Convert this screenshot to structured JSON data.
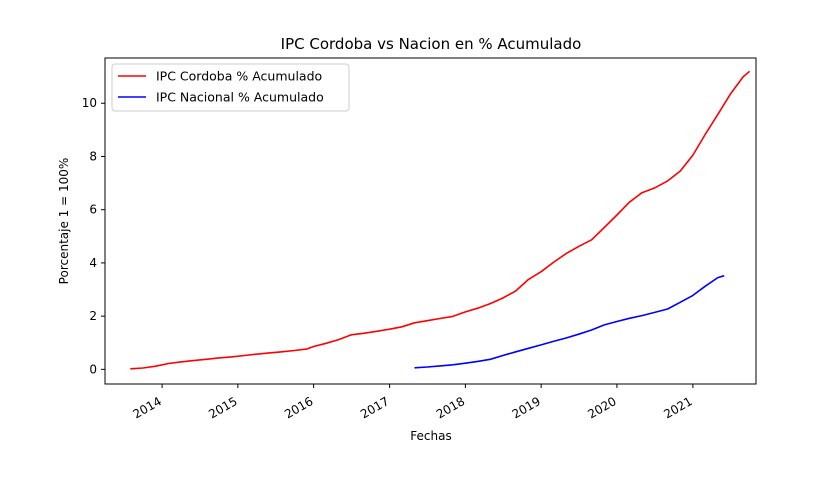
{
  "chart_data": {
    "type": "line",
    "title": "IPC Cordoba vs Nacion en % Acumulado",
    "xlabel": "Fechas",
    "ylabel": "Porcentaje 1 = 100%",
    "xlim": [
      "2013-04-01",
      "2021-11-01"
    ],
    "ylim": [
      -0.55,
      11.7
    ],
    "x_ticks": [
      "2014",
      "2015",
      "2016",
      "2017",
      "2018",
      "2019",
      "2020",
      "2021"
    ],
    "y_ticks": [
      0,
      2,
      4,
      6,
      8,
      10
    ],
    "grid": false,
    "legend_position": "top-left",
    "series": [
      {
        "name": "IPC Cordoba % Acumulado",
        "color": "#ff0000",
        "points": [
          [
            "2013-08-01",
            0.02
          ],
          [
            "2013-10-01",
            0.05
          ],
          [
            "2013-12-01",
            0.12
          ],
          [
            "2014-02-01",
            0.22
          ],
          [
            "2014-04-01",
            0.28
          ],
          [
            "2014-06-01",
            0.33
          ],
          [
            "2014-08-01",
            0.38
          ],
          [
            "2014-10-01",
            0.43
          ],
          [
            "2014-12-01",
            0.47
          ],
          [
            "2015-02-01",
            0.52
          ],
          [
            "2015-04-01",
            0.57
          ],
          [
            "2015-06-01",
            0.62
          ],
          [
            "2015-08-01",
            0.66
          ],
          [
            "2015-10-01",
            0.71
          ],
          [
            "2015-12-01",
            0.77
          ],
          [
            "2016-01-01",
            0.86
          ],
          [
            "2016-03-01",
            0.98
          ],
          [
            "2016-05-01",
            1.12
          ],
          [
            "2016-07-01",
            1.3
          ],
          [
            "2016-09-01",
            1.36
          ],
          [
            "2016-11-01",
            1.43
          ],
          [
            "2017-01-01",
            1.51
          ],
          [
            "2017-03-01",
            1.6
          ],
          [
            "2017-05-01",
            1.75
          ],
          [
            "2017-07-01",
            1.83
          ],
          [
            "2017-09-01",
            1.91
          ],
          [
            "2017-11-01",
            1.99
          ],
          [
            "2018-01-01",
            2.16
          ],
          [
            "2018-03-01",
            2.3
          ],
          [
            "2018-05-01",
            2.47
          ],
          [
            "2018-07-01",
            2.68
          ],
          [
            "2018-09-01",
            2.95
          ],
          [
            "2018-11-01",
            3.38
          ],
          [
            "2019-01-01",
            3.67
          ],
          [
            "2019-03-01",
            4.02
          ],
          [
            "2019-05-01",
            4.35
          ],
          [
            "2019-07-01",
            4.62
          ],
          [
            "2019-09-01",
            4.87
          ],
          [
            "2019-11-01",
            5.33
          ],
          [
            "2020-01-01",
            5.8
          ],
          [
            "2020-03-01",
            6.28
          ],
          [
            "2020-05-01",
            6.64
          ],
          [
            "2020-07-01",
            6.82
          ],
          [
            "2020-09-01",
            7.08
          ],
          [
            "2020-11-01",
            7.45
          ],
          [
            "2021-01-01",
            8.05
          ],
          [
            "2021-03-01",
            8.82
          ],
          [
            "2021-05-01",
            9.58
          ],
          [
            "2021-07-01",
            10.35
          ],
          [
            "2021-09-01",
            11.0
          ],
          [
            "2021-10-01",
            11.2
          ]
        ]
      },
      {
        "name": "IPC Nacional % Acumulado",
        "color": "#0000ff",
        "points": [
          [
            "2017-05-01",
            0.06
          ],
          [
            "2017-07-01",
            0.09
          ],
          [
            "2017-09-01",
            0.13
          ],
          [
            "2017-11-01",
            0.17
          ],
          [
            "2018-01-01",
            0.23
          ],
          [
            "2018-03-01",
            0.3
          ],
          [
            "2018-05-01",
            0.38
          ],
          [
            "2018-07-01",
            0.52
          ],
          [
            "2018-09-01",
            0.66
          ],
          [
            "2018-11-01",
            0.79
          ],
          [
            "2019-01-01",
            0.92
          ],
          [
            "2019-03-01",
            1.05
          ],
          [
            "2019-05-01",
            1.18
          ],
          [
            "2019-07-01",
            1.32
          ],
          [
            "2019-09-01",
            1.48
          ],
          [
            "2019-11-01",
            1.67
          ],
          [
            "2020-01-01",
            1.8
          ],
          [
            "2020-03-01",
            1.92
          ],
          [
            "2020-05-01",
            2.02
          ],
          [
            "2020-07-01",
            2.14
          ],
          [
            "2020-09-01",
            2.27
          ],
          [
            "2020-11-01",
            2.52
          ],
          [
            "2021-01-01",
            2.78
          ],
          [
            "2021-03-01",
            3.12
          ],
          [
            "2021-05-01",
            3.45
          ],
          [
            "2021-06-01",
            3.52
          ]
        ]
      }
    ]
  }
}
